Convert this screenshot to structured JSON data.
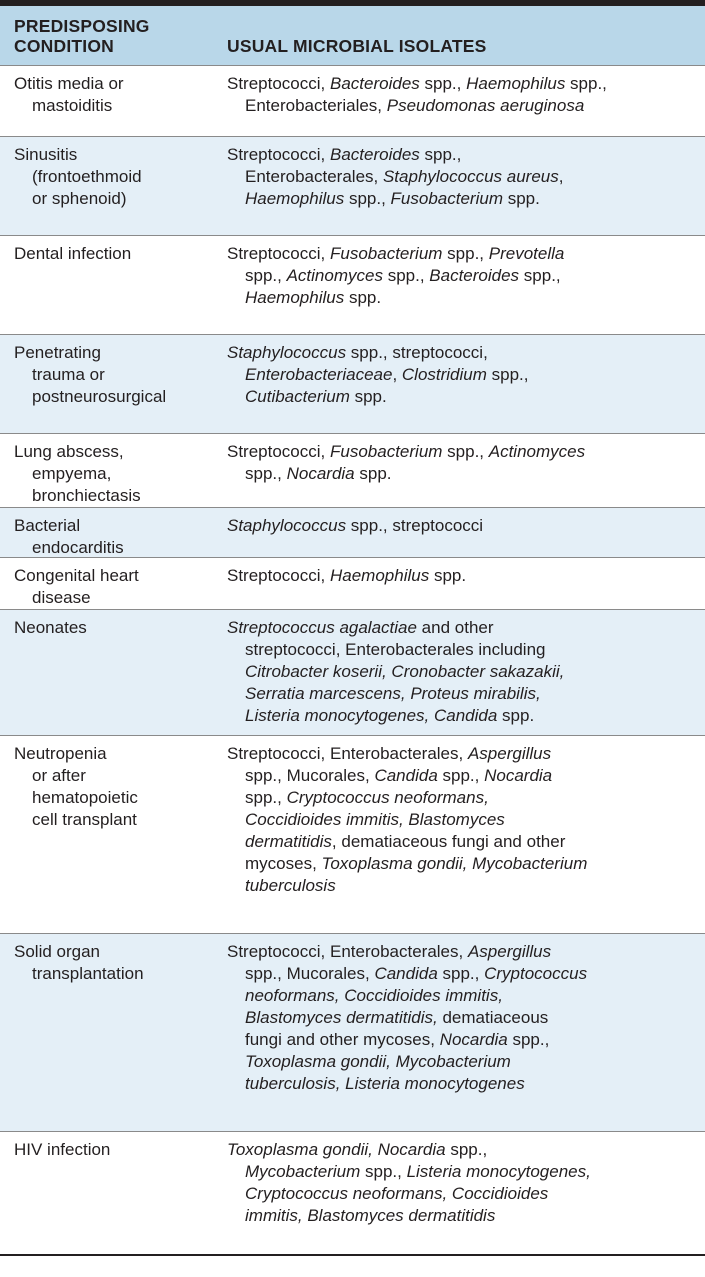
{
  "header": {
    "col1": "PREDISPOSING\nCONDITION",
    "col2": "USUAL MICROBIAL ISOLATES"
  },
  "rows": [
    {
      "condition": [
        "Otitis media or",
        "mastoiditis"
      ],
      "isolates": [
        [
          [
            "Streptococci, ",
            0
          ],
          [
            "Bacteroides",
            1
          ],
          [
            " spp., ",
            0
          ],
          [
            "Haemophilus",
            1
          ],
          [
            " spp.,",
            0
          ]
        ],
        [
          [
            "Enterobacteriales, ",
            0
          ],
          [
            "Pseudomonas aeruginosa",
            1
          ]
        ]
      ]
    },
    {
      "condition": [
        "Sinusitis",
        "(frontoethmoid",
        "or sphenoid)"
      ],
      "isolates": [
        [
          [
            "Streptococci, ",
            0
          ],
          [
            "Bacteroides",
            1
          ],
          [
            " spp.,",
            0
          ]
        ],
        [
          [
            "Enterobacterales, ",
            0
          ],
          [
            "Staphylococcus aureus",
            1
          ],
          [
            ",",
            0
          ]
        ],
        [
          [
            "Haemophilus",
            1
          ],
          [
            " spp., ",
            0
          ],
          [
            "Fusobacterium",
            1
          ],
          [
            " spp.",
            0
          ]
        ]
      ]
    },
    {
      "condition": [
        "Dental infection"
      ],
      "isolates": [
        [
          [
            "Streptococci, ",
            0
          ],
          [
            "Fusobacterium",
            1
          ],
          [
            " spp., ",
            0
          ],
          [
            "Prevotella",
            1
          ]
        ],
        [
          [
            "spp., ",
            0
          ],
          [
            "Actinomyces",
            1
          ],
          [
            " spp., ",
            0
          ],
          [
            "Bacteroides",
            1
          ],
          [
            " spp.,",
            0
          ]
        ],
        [
          [
            "Haemophilus",
            1
          ],
          [
            " spp.",
            0
          ]
        ]
      ]
    },
    {
      "condition": [
        "Penetrating",
        "trauma or",
        "postneurosurgical"
      ],
      "isolates": [
        [
          [
            "Staphylococcus",
            1
          ],
          [
            " spp., streptococci,",
            0
          ]
        ],
        [
          [
            "Enterobacteriaceae",
            1
          ],
          [
            ", ",
            0
          ],
          [
            "Clostridium",
            1
          ],
          [
            " spp.,",
            0
          ]
        ],
        [
          [
            "Cutibacterium",
            1
          ],
          [
            " spp.",
            0
          ]
        ]
      ]
    },
    {
      "condition": [
        "Lung abscess,",
        "empyema,",
        "bronchiectasis"
      ],
      "isolates": [
        [
          [
            "Streptococci, ",
            0
          ],
          [
            "Fusobacterium",
            1
          ],
          [
            " spp., ",
            0
          ],
          [
            "Actinomyces",
            1
          ]
        ],
        [
          [
            "spp., ",
            0
          ],
          [
            "Nocardia",
            1
          ],
          [
            " spp.",
            0
          ]
        ]
      ]
    },
    {
      "condition": [
        "Bacterial",
        "endocarditis"
      ],
      "isolates": [
        [
          [
            "Staphylococcus",
            1
          ],
          [
            " spp., streptococci",
            0
          ]
        ]
      ]
    },
    {
      "condition": [
        "Congenital heart",
        "disease"
      ],
      "isolates": [
        [
          [
            "Streptococci, ",
            0
          ],
          [
            "Haemophilus",
            1
          ],
          [
            " spp.",
            0
          ]
        ]
      ]
    },
    {
      "condition": [
        "Neonates"
      ],
      "isolates": [
        [
          [
            "Streptococcus agalactiae",
            1
          ],
          [
            " and other",
            0
          ]
        ],
        [
          [
            "streptococci, Enterobacterales including",
            0
          ]
        ],
        [
          [
            "Citrobacter koserii, Cronobacter sakazakii,",
            1
          ]
        ],
        [
          [
            "Serratia marcescens, Proteus mirabilis,",
            1
          ]
        ],
        [
          [
            "Listeria monocytogenes, Candida",
            1
          ],
          [
            " spp.",
            0
          ]
        ]
      ]
    },
    {
      "condition": [
        "Neutropenia",
        "or after",
        "hematopoietic",
        "cell transplant"
      ],
      "isolates": [
        [
          [
            "Streptococci, Enterobacterales, ",
            0
          ],
          [
            "Aspergillus",
            1
          ]
        ],
        [
          [
            "spp., Mucorales, ",
            0
          ],
          [
            "Candida",
            1
          ],
          [
            " spp., ",
            0
          ],
          [
            "Nocardia",
            1
          ]
        ],
        [
          [
            "spp., ",
            0
          ],
          [
            "Cryptococcus neoformans,",
            1
          ]
        ],
        [
          [
            "Coccidioides immitis, Blastomyces",
            1
          ]
        ],
        [
          [
            "dermatitidis",
            1
          ],
          [
            ", dematiaceous fungi and other",
            0
          ]
        ],
        [
          [
            "mycoses, ",
            0
          ],
          [
            "Toxoplasma gondii, Mycobacterium",
            1
          ]
        ],
        [
          [
            "tuberculosis",
            1
          ]
        ]
      ]
    },
    {
      "condition": [
        "Solid organ",
        "transplantation"
      ],
      "isolates": [
        [
          [
            "Streptococci, Enterobacterales, ",
            0
          ],
          [
            "Aspergillus",
            1
          ]
        ],
        [
          [
            "spp., Mucorales, ",
            0
          ],
          [
            "Candida",
            1
          ],
          [
            " spp., ",
            0
          ],
          [
            "Cryptococcus",
            1
          ]
        ],
        [
          [
            "neoformans, Coccidioides immitis,",
            1
          ]
        ],
        [
          [
            "Blastomyces dermatitidis,",
            1
          ],
          [
            " dematiaceous",
            0
          ]
        ],
        [
          [
            "fungi and other mycoses, ",
            0
          ],
          [
            "Nocardia",
            1
          ],
          [
            " spp.,",
            0
          ]
        ],
        [
          [
            "Toxoplasma gondii, Mycobacterium",
            1
          ]
        ],
        [
          [
            "tuberculosis, Listeria monocytogenes",
            1
          ]
        ]
      ]
    },
    {
      "condition": [
        "HIV infection"
      ],
      "isolates": [
        [
          [
            "Toxoplasma gondii, Nocardia",
            1
          ],
          [
            " spp.,",
            0
          ]
        ],
        [
          [
            "Mycobacterium",
            1
          ],
          [
            " spp., ",
            0
          ],
          [
            "Listeria monocytogenes,",
            1
          ]
        ],
        [
          [
            "Cryptococcus neoformans, Coccidioides",
            1
          ]
        ],
        [
          [
            "immitis, Blastomyces dermatitidis",
            1
          ]
        ]
      ]
    }
  ]
}
